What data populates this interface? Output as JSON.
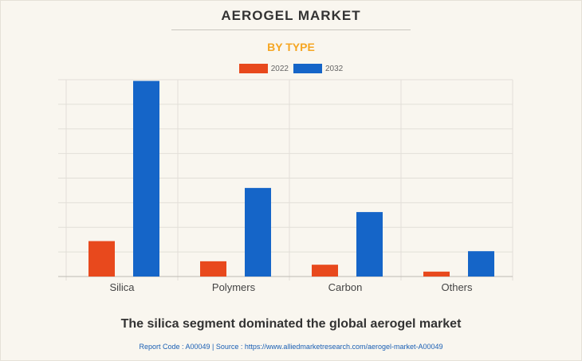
{
  "header": {
    "title": "AEROGEL MARKET",
    "subtitle": "BY TYPE"
  },
  "chart_data": {
    "type": "bar",
    "categories": [
      "Silica",
      "Polymers",
      "Carbon",
      "Others"
    ],
    "series": [
      {
        "name": "2022",
        "color": "#e8491d",
        "values": [
          1.44,
          0.62,
          0.48,
          0.2
        ]
      },
      {
        "name": "2032",
        "color": "#1565c8",
        "values": [
          7.95,
          3.6,
          2.62,
          1.03
        ]
      }
    ],
    "ylim": [
      0,
      8
    ],
    "y_tick_step": 1,
    "y_tick_labels_shown": false,
    "grid": true,
    "legend_position": "top-center",
    "xlabel": "",
    "ylabel": ""
  },
  "footer": {
    "headline": "The silica segment dominated the global aerogel market",
    "source": "Report Code : A00049  |  Source : https://www.alliedmarketresearch.com/aerogel-market-A00049"
  }
}
